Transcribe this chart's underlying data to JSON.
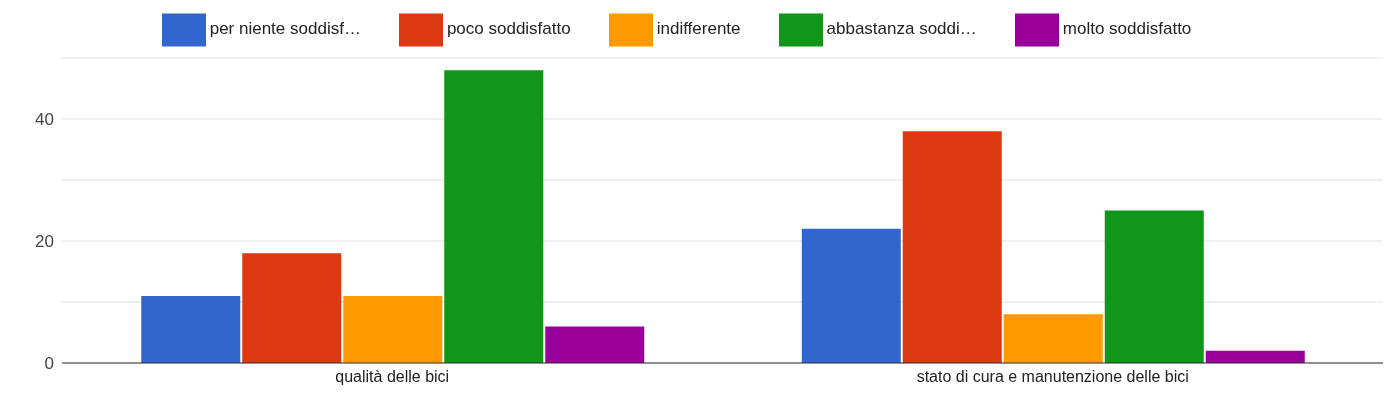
{
  "chart_data": {
    "type": "bar",
    "categories": [
      "qualità delle bici",
      "stato di cura e manutenzione delle bici"
    ],
    "series": [
      {
        "name": "per niente soddisf…",
        "color": "#3366cc",
        "values": [
          11,
          22
        ]
      },
      {
        "name": "poco soddisfatto",
        "color": "#dc3912",
        "values": [
          18,
          38
        ]
      },
      {
        "name": "indifferente",
        "color": "#ff9900",
        "values": [
          11,
          8
        ]
      },
      {
        "name": "abbastanza soddi…",
        "color": "#109618",
        "values": [
          48,
          25
        ]
      },
      {
        "name": "molto soddisfatto",
        "color": "#990099",
        "values": [
          6,
          2
        ]
      }
    ],
    "ylim": [
      0,
      50
    ],
    "yticks": [
      0,
      {
        "value": 10,
        "label": null
      },
      20,
      {
        "value": 30,
        "label": null
      },
      40
    ],
    "grid": "y",
    "legend": "top"
  }
}
